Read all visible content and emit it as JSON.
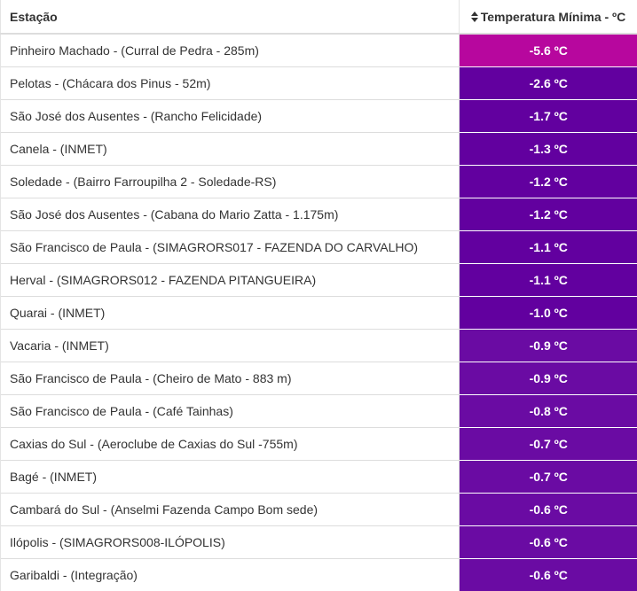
{
  "table": {
    "headers": {
      "station": "Estação",
      "temperature": "Temperatura Mínima - ºC",
      "sort_icon": "sort-up-down-icon"
    },
    "colors": {
      "extreme": "#b7079e",
      "cold": "#62009f",
      "cold_alt": "#6a0ba3"
    },
    "rows": [
      {
        "station": "Pinheiro Machado - (Curral de Pedra - 285m)",
        "temp": "-5.6 ºC",
        "color": "#b7079e"
      },
      {
        "station": "Pelotas - (Chácara dos Pinus - 52m)",
        "temp": "-2.6 ºC",
        "color": "#62009f"
      },
      {
        "station": "São José dos Ausentes - (Rancho Felicidade)",
        "temp": "-1.7 ºC",
        "color": "#62009f"
      },
      {
        "station": "Canela - (INMET)",
        "temp": "-1.3 ºC",
        "color": "#62009f"
      },
      {
        "station": "Soledade - (Bairro Farroupilha 2 - Soledade-RS)",
        "temp": "-1.2 ºC",
        "color": "#62009f"
      },
      {
        "station": "São José dos Ausentes - (Cabana do Mario Zatta - 1.175m)",
        "temp": "-1.2 ºC",
        "color": "#62009f"
      },
      {
        "station": "São Francisco de Paula - (SIMAGRORS017 - FAZENDA DO CARVALHO)",
        "temp": "-1.1 ºC",
        "color": "#62009f"
      },
      {
        "station": "Herval - (SIMAGRORS012 - FAZENDA PITANGUEIRA)",
        "temp": "-1.1 ºC",
        "color": "#62009f"
      },
      {
        "station": "Quarai - (INMET)",
        "temp": "-1.0 ºC",
        "color": "#62009f"
      },
      {
        "station": "Vacaria - (INMET)",
        "temp": "-0.9 ºC",
        "color": "#6a0ba3"
      },
      {
        "station": "São Francisco de Paula - (Cheiro de Mato - 883 m)",
        "temp": "-0.9 ºC",
        "color": "#6a0ba3"
      },
      {
        "station": "São Francisco de Paula - (Café Tainhas)",
        "temp": "-0.8 ºC",
        "color": "#6a0ba3"
      },
      {
        "station": "Caxias do Sul - (Aeroclube de Caxias do Sul -755m)",
        "temp": "-0.7 ºC",
        "color": "#6a0ba3"
      },
      {
        "station": "Bagé - (INMET)",
        "temp": "-0.7 ºC",
        "color": "#6a0ba3"
      },
      {
        "station": "Cambará do Sul - (Anselmi Fazenda Campo Bom sede)",
        "temp": "-0.6 ºC",
        "color": "#6a0ba3"
      },
      {
        "station": "Ilópolis - (SIMAGRORS008-ILÓPOLIS)",
        "temp": "-0.6 ºC",
        "color": "#6a0ba3"
      },
      {
        "station": "Garibaldi - (Integração)",
        "temp": "-0.6 ºC",
        "color": "#6a0ba3"
      }
    ]
  }
}
